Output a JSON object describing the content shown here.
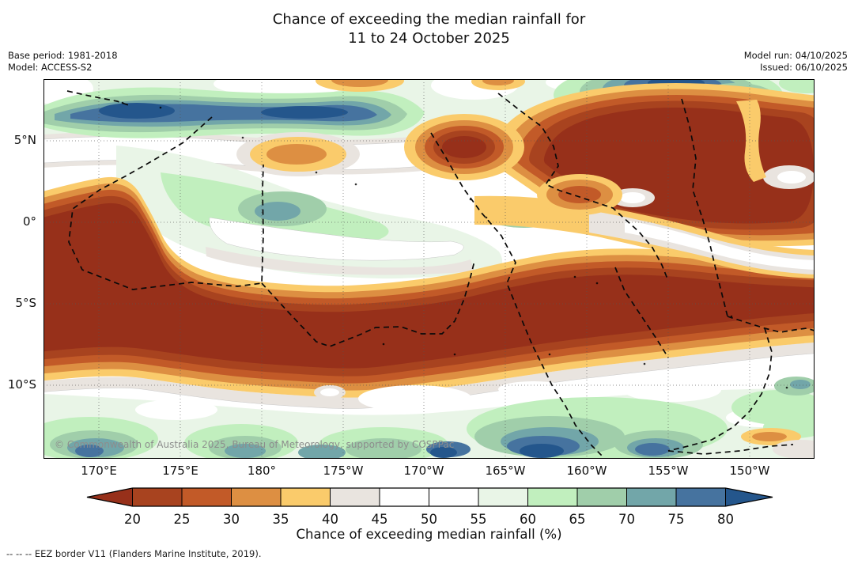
{
  "header": {
    "title_line1": "Chance of exceeding the median rainfall for",
    "title_line2": "11 to 24 October 2025",
    "base_period": "Base period: 1981-2018",
    "model": "Model: ACCESS-S2",
    "model_run": "Model run: 04/10/2025",
    "issued": "Issued: 06/10/2025"
  },
  "map": {
    "copyright": "© Commonwealth of Australia 2025, Bureau of Meteorology, supported by COSPPac",
    "lat_ticks": [
      "5°N",
      "0°",
      "5°S",
      "10°S"
    ],
    "lon_ticks": [
      "170°E",
      "175°E",
      "180°",
      "175°W",
      "170°W",
      "165°W",
      "160°W",
      "155°W",
      "150°W"
    ]
  },
  "colorbar": {
    "label": "Chance of exceeding median rainfall (%)",
    "ticks": [
      "20",
      "25",
      "30",
      "35",
      "40",
      "45",
      "50",
      "55",
      "60",
      "65",
      "70",
      "75",
      "80"
    ]
  },
  "palette": {
    "lt20": "#97301A",
    "c20": "#A8431F",
    "c25": "#C25A28",
    "c30": "#DD8F42",
    "c35": "#FACB6B",
    "c40": "#E9E4DF",
    "c45": "#FFFFFF",
    "c50": "#FFFFFF",
    "c55": "#E9F5E7",
    "c60": "#C1EFBE",
    "c65": "#A0CEAA",
    "c70": "#72A6A9",
    "c75": "#46739F",
    "gt80": "#24568C"
  },
  "footer": {
    "eez_note": "--  --  -- EEZ border V11 (Flanders Marine Institute, 2019)."
  },
  "chart_data": {
    "type": "filled-contour-map",
    "variable": "Chance of exceeding median rainfall (%)",
    "title": "Chance of exceeding the median rainfall for 11 to 24 October 2025",
    "x_ticks_longitude": [
      "170°E",
      "175°E",
      "180°",
      "175°W",
      "170°W",
      "165°W",
      "160°W",
      "155°W",
      "150°W"
    ],
    "y_ticks_latitude": [
      "5°N",
      "0°",
      "5°S",
      "10°S"
    ],
    "color_scale": {
      "bin_edges_percent": [
        20,
        25,
        30,
        35,
        40,
        45,
        50,
        55,
        60,
        65,
        70,
        75,
        80
      ],
      "below_min_color": "#97301A",
      "above_max_color": "#24568C",
      "bin_colors": [
        "#A8431F",
        "#C25A28",
        "#DD8F42",
        "#FACB6B",
        "#E9E4DF",
        "#FFFFFF",
        "#FFFFFF",
        "#E9F5E7",
        "#C1EFBE",
        "#A0CEAA",
        "#72A6A9",
        "#46739F"
      ]
    },
    "features": [
      "large dark-red band (chance below 20-25%) along and south of the equator across the whole domain",
      "blue/teal high-chance band (70-80%+) near 6-8°N in the west and north-east",
      "green/teal high-chance region south of about 11°S",
      "dark-red low-chance lobe north-east between 160°W and 148°W, 0-7°N",
      "black dashed lines mark EEZ borders"
    ]
  }
}
